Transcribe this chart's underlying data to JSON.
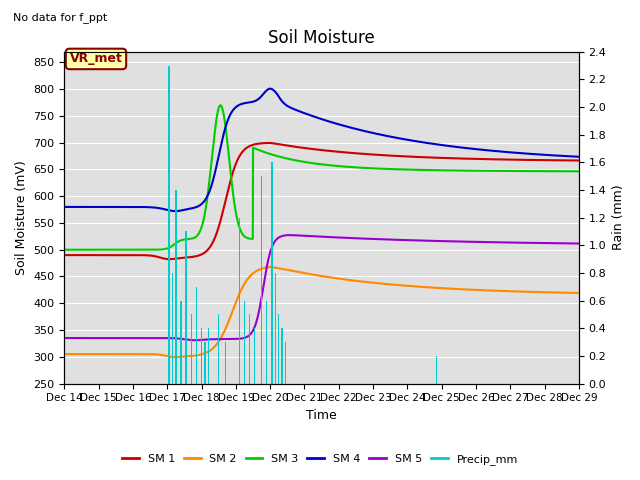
{
  "title": "Soil Moisture",
  "subtitle": "No data for f_ppt",
  "xlabel": "Time",
  "ylabel_left": "Soil Moisture (mV)",
  "ylabel_right": "Rain (mm)",
  "ylim_left": [
    250,
    870
  ],
  "ylim_right": [
    0.0,
    2.4
  ],
  "annotation_box": "VR_met",
  "x_ticks": [
    14,
    15,
    16,
    17,
    18,
    19,
    20,
    21,
    22,
    23,
    24,
    25,
    26,
    27,
    28,
    29
  ],
  "x_tick_labels": [
    "Dec 14",
    "Dec 15",
    "Dec 16",
    "Dec 17",
    "Dec 18",
    "Dec 19",
    "Dec 20",
    "Dec 21",
    "Dec 22",
    "Dec 23",
    "Dec 24",
    "Dec 25",
    "Dec 26",
    "Dec 27",
    "Dec 28",
    "Dec 29"
  ],
  "colors": {
    "SM1": "#cc0000",
    "SM2": "#ff8800",
    "SM3": "#00cc00",
    "SM4": "#0000cc",
    "SM5": "#9900cc",
    "precip": "#00cccc",
    "bg": "#e0e0e0",
    "fig_bg": "#ffffff"
  },
  "rain_events": [
    [
      17.05,
      2.3
    ],
    [
      17.15,
      0.8
    ],
    [
      17.25,
      1.4
    ],
    [
      17.4,
      0.6
    ],
    [
      17.55,
      1.1
    ],
    [
      17.7,
      0.5
    ],
    [
      17.85,
      0.7
    ],
    [
      18.0,
      0.4
    ],
    [
      18.1,
      0.3
    ],
    [
      18.2,
      0.4
    ],
    [
      18.5,
      0.5
    ],
    [
      18.7,
      0.3
    ],
    [
      19.1,
      1.2
    ],
    [
      19.25,
      0.6
    ],
    [
      19.4,
      0.5
    ],
    [
      19.55,
      0.4
    ],
    [
      19.75,
      1.5
    ],
    [
      19.9,
      0.6
    ],
    [
      20.05,
      1.6
    ],
    [
      20.15,
      0.8
    ],
    [
      20.25,
      0.5
    ],
    [
      20.35,
      0.4
    ],
    [
      20.45,
      0.3
    ],
    [
      24.85,
      0.2
    ]
  ],
  "yticks_left": [
    250,
    300,
    350,
    400,
    450,
    500,
    550,
    600,
    650,
    700,
    750,
    800,
    850
  ],
  "yticks_right": [
    0.0,
    0.2,
    0.4,
    0.6,
    0.8,
    1.0,
    1.2,
    1.4,
    1.6,
    1.8,
    2.0,
    2.2,
    2.4
  ]
}
